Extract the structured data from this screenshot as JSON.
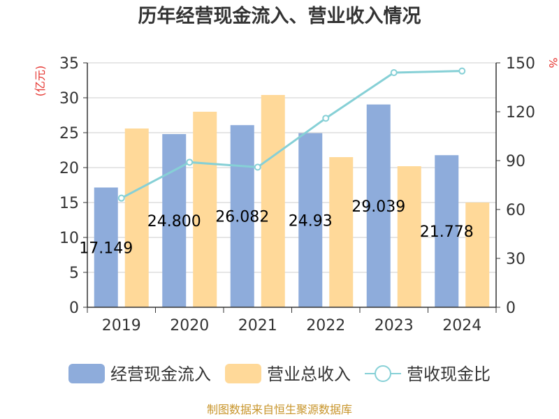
{
  "chart_data": {
    "type": "bar",
    "title": "历年经营现金流入、营业收入情况",
    "categories": [
      "2019",
      "2020",
      "2021",
      "2022",
      "2023",
      "2024"
    ],
    "series": [
      {
        "name": "经营现金流入",
        "type": "bar",
        "axis": "left",
        "color": "#8eacdb",
        "values": [
          17.149,
          24.8,
          26.082,
          24.93,
          29.039,
          21.778
        ],
        "data_labels": [
          "17.149",
          "24.800",
          "26.082",
          "24.93",
          "29.039",
          "21.778"
        ]
      },
      {
        "name": "营业总收入",
        "type": "bar",
        "axis": "left",
        "color": "#ffd999",
        "values": [
          25.6,
          28.0,
          30.4,
          21.5,
          20.2,
          15.0
        ]
      },
      {
        "name": "营收现金比",
        "type": "line",
        "axis": "right",
        "color": "#86d0d6",
        "values": [
          67,
          89,
          86,
          116,
          144,
          145
        ]
      }
    ],
    "ylabel": "(亿元)",
    "y2label": "%",
    "ylim": [
      0,
      35
    ],
    "y2lim": [
      0,
      150
    ],
    "y_ticks": [
      "0",
      "5",
      "10",
      "15",
      "20",
      "25",
      "30",
      "35"
    ],
    "y2_ticks": [
      "0",
      "30",
      "60",
      "90",
      "120",
      "150"
    ],
    "grid": true,
    "legend_position": "bottom"
  },
  "source_text": "制图数据来自恒生聚源数据库"
}
